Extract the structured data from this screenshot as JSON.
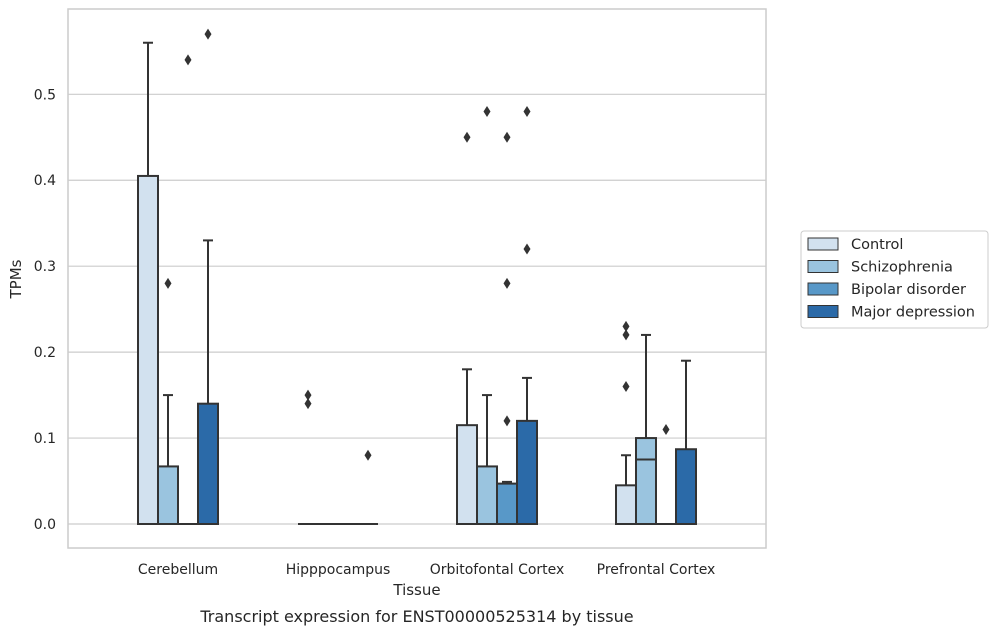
{
  "chart_data": {
    "type": "box",
    "title": "",
    "caption": "Transcript expression for ENST00000525314 by tissue",
    "xlabel": "Tissue",
    "ylabel": "TPMs",
    "ylim": [
      -0.028,
      0.6
    ],
    "yticks": [
      0.0,
      0.1,
      0.2,
      0.3,
      0.4,
      0.5
    ],
    "ytick_labels": [
      "0.0",
      "0.1",
      "0.2",
      "0.3",
      "0.4",
      "0.5"
    ],
    "grid": "horizontal",
    "legend_position": "right",
    "categories": [
      "Cerebellum",
      "Hipppocampus",
      "Orbitofontal Cortex",
      "Prefrontal Cortex"
    ],
    "series": [
      {
        "name": "Control",
        "color": "#d2e1ef",
        "boxes": [
          {
            "q1": 0.0,
            "median": 0.0,
            "q3": 0.405,
            "whisker_low": 0.0,
            "whisker_high": 0.56,
            "outliers": []
          },
          {
            "q1": 0.0,
            "median": 0.0,
            "q3": 0.0,
            "whisker_low": 0.0,
            "whisker_high": 0.0,
            "outliers": [
              0.14,
              0.15
            ]
          },
          {
            "q1": 0.0,
            "median": 0.0,
            "q3": 0.115,
            "whisker_low": 0.0,
            "whisker_high": 0.18,
            "outliers": [
              0.45
            ]
          },
          {
            "q1": 0.0,
            "median": 0.0,
            "q3": 0.045,
            "whisker_low": 0.0,
            "whisker_high": 0.08,
            "outliers": [
              0.16,
              0.22,
              0.23
            ]
          }
        ]
      },
      {
        "name": "Schizophrenia",
        "color": "#9ac4df",
        "boxes": [
          {
            "q1": 0.0,
            "median": 0.0,
            "q3": 0.067,
            "whisker_low": 0.0,
            "whisker_high": 0.15,
            "outliers": [
              0.28
            ]
          },
          {
            "q1": 0.0,
            "median": 0.0,
            "q3": 0.0,
            "whisker_low": 0.0,
            "whisker_high": 0.0,
            "outliers": []
          },
          {
            "q1": 0.0,
            "median": 0.0,
            "q3": 0.067,
            "whisker_low": 0.0,
            "whisker_high": 0.15,
            "outliers": [
              0.48
            ]
          },
          {
            "q1": 0.0,
            "median": 0.075,
            "q3": 0.1,
            "whisker_low": 0.0,
            "whisker_high": 0.22,
            "outliers": []
          }
        ]
      },
      {
        "name": "Bipolar disorder",
        "color": "#5898c8",
        "boxes": [
          {
            "q1": 0.0,
            "median": 0.0,
            "q3": 0.0,
            "whisker_low": 0.0,
            "whisker_high": 0.0,
            "outliers": [
              0.54
            ]
          },
          {
            "q1": 0.0,
            "median": 0.0,
            "q3": 0.0,
            "whisker_low": 0.0,
            "whisker_high": 0.0,
            "outliers": []
          },
          {
            "q1": 0.0,
            "median": 0.0,
            "q3": 0.047,
            "whisker_low": 0.0,
            "whisker_high": 0.049,
            "outliers": [
              0.12,
              0.28,
              0.45
            ]
          },
          {
            "q1": 0.0,
            "median": 0.0,
            "q3": 0.0,
            "whisker_low": 0.0,
            "whisker_high": 0.0,
            "outliers": [
              0.11
            ]
          }
        ]
      },
      {
        "name": "Major depression",
        "color": "#2b6aa8",
        "boxes": [
          {
            "q1": 0.0,
            "median": 0.0,
            "q3": 0.14,
            "whisker_low": 0.0,
            "whisker_high": 0.33,
            "outliers": [
              0.57
            ]
          },
          {
            "q1": 0.0,
            "median": 0.0,
            "q3": 0.0,
            "whisker_low": 0.0,
            "whisker_high": 0.0,
            "outliers": [
              0.08
            ]
          },
          {
            "q1": 0.0,
            "median": 0.0,
            "q3": 0.12,
            "whisker_low": 0.0,
            "whisker_high": 0.17,
            "outliers": [
              0.32,
              0.48
            ]
          },
          {
            "q1": 0.0,
            "median": 0.0,
            "q3": 0.087,
            "whisker_low": 0.0,
            "whisker_high": 0.19,
            "outliers": []
          }
        ]
      }
    ]
  }
}
